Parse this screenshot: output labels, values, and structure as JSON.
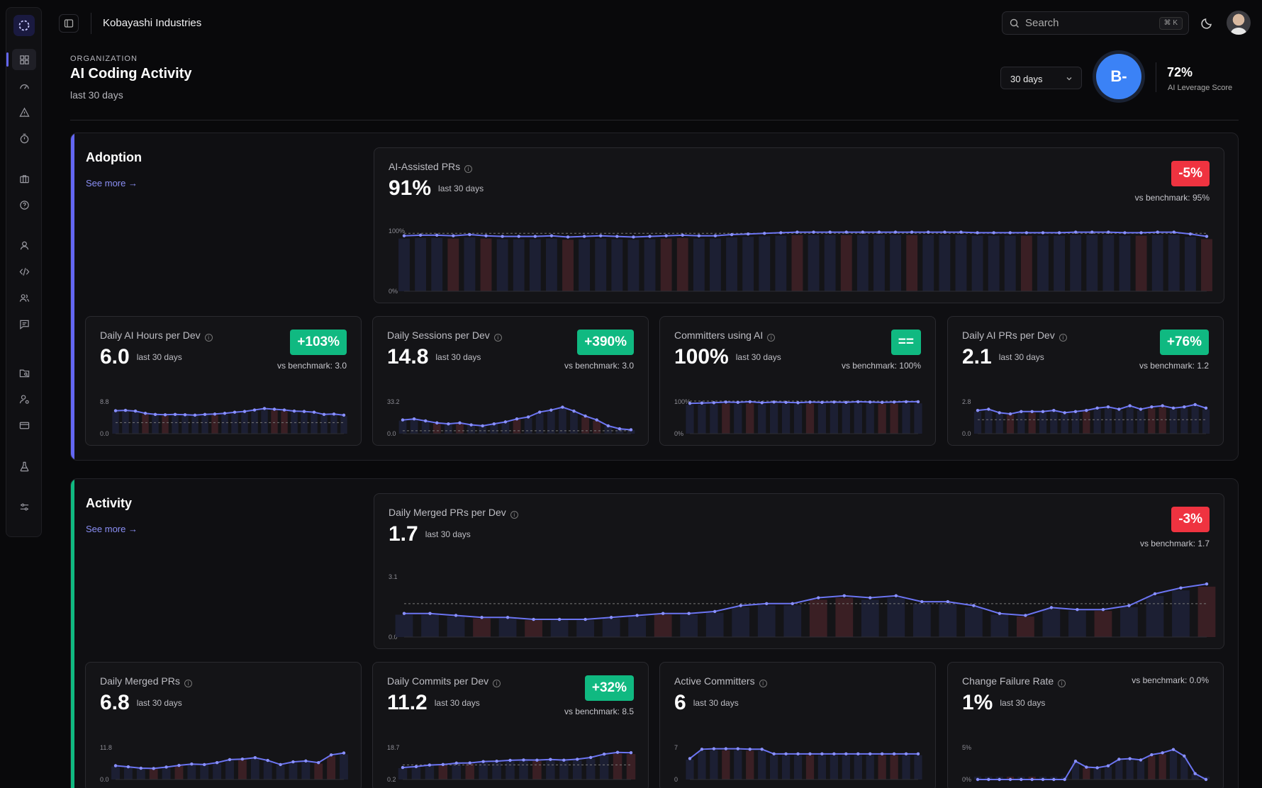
{
  "topbar": {
    "org_name": "Kobayashi Industries",
    "search_placeholder": "Search",
    "shortcut": "⌘ K"
  },
  "header": {
    "eyebrow": "ORGANIZATION",
    "title": "AI Coding Activity",
    "subtitle": "last 30 days",
    "range": "30 days",
    "grade": "B-",
    "score": "72%",
    "score_label": "AI Leverage Score"
  },
  "sections": [
    {
      "title": "Adoption",
      "see_more": "See more",
      "accent": "#6366f1"
    },
    {
      "title": "Activity",
      "see_more": "See more",
      "accent": "#10b981"
    }
  ],
  "cards": {
    "ai_prs": {
      "title": "AI-Assisted PRs",
      "value": "91%",
      "period": "last 30 days",
      "badge": "-5%",
      "bench": "vs benchmark: 95%"
    },
    "ai_hours": {
      "title": "Daily AI Hours per Dev",
      "value": "6.0",
      "period": "last 30 days",
      "badge": "+103%",
      "bench": "vs benchmark: 3.0"
    },
    "sessions": {
      "title": "Daily Sessions per Dev",
      "value": "14.8",
      "period": "last 30 days",
      "badge": "+390%",
      "bench": "vs benchmark: 3.0"
    },
    "committers_ai": {
      "title": "Committers using AI",
      "value": "100%",
      "period": "last 30 days",
      "badge": "==",
      "bench": "vs benchmark: 100%"
    },
    "ai_prs_dev": {
      "title": "Daily AI PRs per Dev",
      "value": "2.1",
      "period": "last 30 days",
      "badge": "+76%",
      "bench": "vs benchmark: 1.2"
    },
    "merged_dev": {
      "title": "Daily Merged PRs per Dev",
      "value": "1.7",
      "period": "last 30 days",
      "badge": "-3%",
      "bench": "vs benchmark: 1.7"
    },
    "merged": {
      "title": "Daily Merged PRs",
      "value": "6.8",
      "period": "last 30 days"
    },
    "commits": {
      "title": "Daily Commits per Dev",
      "value": "11.2",
      "period": "last 30 days",
      "badge": "+32%",
      "bench": "vs benchmark: 8.5"
    },
    "active": {
      "title": "Active Committers",
      "value": "6",
      "period": "last 30 days"
    },
    "cfr": {
      "title": "Change Failure Rate",
      "value": "1%",
      "period": "last 30 days",
      "bench": "vs benchmark: 0.0%"
    }
  },
  "chart_data": [
    {
      "id": "ai_prs",
      "type": "line",
      "ylabels": [
        "100%",
        "0%"
      ],
      "ylim": [
        0,
        100
      ],
      "benchmark": 95,
      "values": [
        91,
        92,
        92,
        91,
        93,
        91,
        90,
        90,
        90,
        91,
        89,
        90,
        91,
        90,
        89,
        90,
        91,
        92,
        91,
        91,
        93,
        94,
        95,
        96,
        97,
        97,
        97,
        97,
        97,
        97,
        97,
        97,
        97,
        97,
        97,
        96,
        96,
        96,
        96,
        96,
        96,
        97,
        97,
        97,
        96,
        96,
        97,
        97,
        94,
        90
      ]
    },
    {
      "id": "ai_hours",
      "type": "line",
      "ylabels": [
        "8.8",
        "0.0"
      ],
      "ylim": [
        0,
        8.8
      ],
      "benchmark": 3.0,
      "values": [
        6.2,
        6.3,
        6.1,
        5.5,
        5.2,
        5.1,
        5.2,
        5.1,
        5.0,
        5.2,
        5.3,
        5.5,
        5.8,
        6.0,
        6.4,
        6.8,
        6.6,
        6.4,
        6.1,
        6.0,
        5.8,
        5.2,
        5.3,
        5.0
      ]
    },
    {
      "id": "sessions",
      "type": "line",
      "ylabels": [
        "33.2",
        "0.0"
      ],
      "ylim": [
        0,
        33.2
      ],
      "benchmark": 3.0,
      "values": [
        14,
        15,
        13,
        11,
        10,
        11,
        9,
        8,
        10,
        12,
        15,
        17,
        22,
        24,
        27,
        23,
        18,
        14,
        8,
        5,
        4
      ]
    },
    {
      "id": "committers_ai",
      "type": "line",
      "ylabels": [
        "100%",
        "0%"
      ],
      "ylim": [
        0,
        100
      ],
      "benchmark": 100,
      "values": [
        93,
        94,
        95,
        97,
        96,
        98,
        95,
        97,
        96,
        95,
        97,
        96,
        97,
        96,
        98,
        97,
        96,
        97,
        98,
        98
      ]
    },
    {
      "id": "ai_prs_dev",
      "type": "line",
      "ylabels": [
        "2.8",
        "0.0"
      ],
      "ylim": [
        0,
        2.8
      ],
      "benchmark": 1.2,
      "values": [
        2.0,
        2.1,
        1.8,
        1.7,
        1.9,
        1.9,
        1.9,
        2.0,
        1.8,
        1.9,
        2.0,
        2.2,
        2.3,
        2.1,
        2.4,
        2.1,
        2.3,
        2.4,
        2.2,
        2.3,
        2.5,
        2.2
      ]
    },
    {
      "id": "merged_dev",
      "type": "line",
      "ylabels": [
        "3.1",
        "0.0"
      ],
      "ylim": [
        0,
        3.1
      ],
      "benchmark": 1.7,
      "values": [
        1.2,
        1.2,
        1.1,
        1.0,
        1.0,
        0.9,
        0.9,
        0.9,
        1.0,
        1.1,
        1.2,
        1.2,
        1.3,
        1.6,
        1.7,
        1.7,
        2.0,
        2.1,
        2.0,
        2.1,
        1.8,
        1.8,
        1.6,
        1.2,
        1.1,
        1.5,
        1.4,
        1.4,
        1.6,
        2.2,
        2.5,
        2.7
      ]
    },
    {
      "id": "merged",
      "type": "line",
      "ylabels": [
        "11.8",
        "0.0"
      ],
      "ylim": [
        0,
        11.8
      ],
      "benchmark": 0,
      "values": [
        5,
        4.6,
        4.1,
        4.0,
        4.5,
        5.1,
        5.6,
        5.4,
        6.1,
        7.2,
        7.4,
        7.9,
        6.9,
        5.4,
        6.4,
        6.7,
        6.1,
        8.9,
        9.6
      ]
    },
    {
      "id": "commits",
      "type": "line",
      "ylabels": [
        "18.7",
        "0.2"
      ],
      "ylim": [
        0.2,
        18.7
      ],
      "benchmark": 8.5,
      "values": [
        7,
        7.5,
        8.4,
        8.7,
        9.5,
        9.6,
        10.4,
        10.6,
        11.1,
        11.3,
        11.2,
        11.6,
        11.2,
        11.7,
        12.7,
        14.6,
        15.6,
        15.4
      ]
    },
    {
      "id": "active",
      "type": "line",
      "ylabels": [
        "7",
        "0"
      ],
      "ylim": [
        0,
        7
      ],
      "benchmark": 0,
      "values": [
        4.5,
        6.5,
        6.6,
        6.6,
        6.6,
        6.5,
        6.5,
        5.5,
        5.5,
        5.5,
        5.5,
        5.5,
        5.5,
        5.5,
        5.5,
        5.5,
        5.5,
        5.5,
        5.5,
        5.5
      ]
    },
    {
      "id": "cfr",
      "type": "line",
      "ylabels": [
        "5%",
        "0%"
      ],
      "ylim": [
        0,
        5
      ],
      "benchmark": 0,
      "values": [
        0,
        0,
        0,
        0,
        0,
        0,
        0,
        0,
        0,
        2.8,
        1.9,
        1.8,
        2.1,
        3.1,
        3.2,
        3.0,
        3.8,
        4.1,
        4.6,
        3.6,
        0.9,
        0
      ]
    }
  ]
}
